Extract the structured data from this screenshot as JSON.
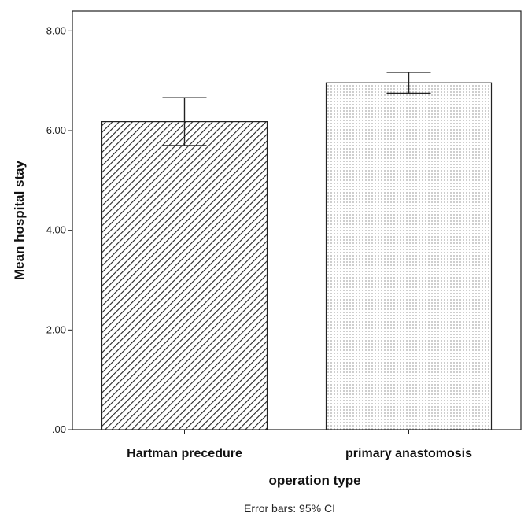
{
  "chart_data": {
    "type": "bar",
    "categories": [
      "Hartman precedure",
      "primary anastomosis"
    ],
    "values": [
      6.18,
      6.96
    ],
    "error_bars": [
      {
        "lower": 5.7,
        "upper": 6.66
      },
      {
        "lower": 6.75,
        "upper": 7.17
      }
    ],
    "xlabel": "operation type",
    "ylabel": "Mean hospital stay",
    "ylim": [
      0,
      8.4
    ],
    "yticks": [
      0,
      2,
      4,
      6,
      8
    ],
    "ytick_labels": [
      ".00",
      "2.00",
      "4.00",
      "6.00",
      "8.00"
    ],
    "footnote": "Error bars: 95% CI",
    "fills": [
      "diagonal-hatch",
      "dotted"
    ],
    "grid": false,
    "legend": "none"
  }
}
